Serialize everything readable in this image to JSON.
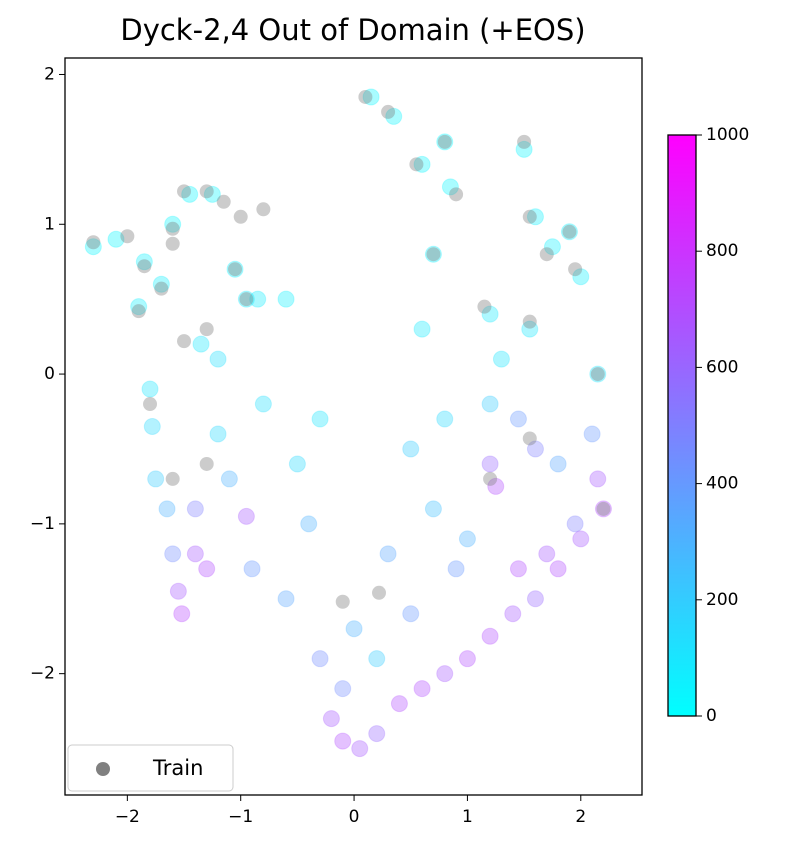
{
  "chart_data": {
    "type": "scatter",
    "title": "Dyck-2,4 Out of Domain (+EOS)",
    "xlim": [
      -2.55,
      2.54
    ],
    "ylim": [
      -2.81,
      2.11
    ],
    "xticks": [
      {
        "value": -2,
        "label": "−2"
      },
      {
        "value": -1,
        "label": "−1"
      },
      0,
      1,
      2
    ],
    "yticks": [
      {
        "value": -2,
        "label": "−2"
      },
      {
        "value": -1,
        "label": "−1"
      },
      0,
      1,
      2
    ],
    "colorbar": {
      "cmap": "cool",
      "clim": [
        0,
        1000
      ],
      "ticks": [
        0,
        200,
        400,
        600,
        800,
        1000
      ]
    },
    "legend": "lower left",
    "series": [
      {
        "x": [
          -2.3,
          -2.1,
          -1.85,
          -1.7,
          -1.9,
          -1.6,
          -1.45,
          -1.25,
          -0.95,
          -0.85,
          -1.05,
          -1.35,
          -1.2,
          0.15,
          0.35,
          0.6,
          0.85,
          0.8,
          0.7,
          1.5,
          1.6,
          1.75,
          1.9,
          2.0,
          1.2,
          1.3,
          1.55,
          2.15,
          -1.8,
          -1.78,
          -1.75,
          -1.65,
          -1.6,
          -1.55,
          -1.52,
          -1.4,
          -1.3,
          -1.2,
          -1.1,
          -0.95,
          -1.4,
          1.2,
          1.2,
          1.25,
          1.45,
          1.6,
          1.8,
          2.1,
          2.2,
          2.15,
          1.95,
          1.7,
          1.45,
          -0.9,
          -0.6,
          -0.3,
          -0.2,
          -0.1,
          0.05,
          0.2,
          0.4,
          0.6,
          0.8,
          1.0,
          1.2,
          1.4,
          1.6,
          1.8,
          2.0,
          0.0,
          0.2,
          -0.1,
          0.5,
          -0.5,
          -0.3,
          -0.8,
          0.5,
          0.7,
          0.3,
          -0.4,
          0.9,
          0.6,
          -0.6,
          0.8,
          1.0
        ],
        "y": [
          0.85,
          0.9,
          0.75,
          0.6,
          0.45,
          1.0,
          1.2,
          1.2,
          0.5,
          0.5,
          0.7,
          0.2,
          0.1,
          1.85,
          1.72,
          1.4,
          1.25,
          1.55,
          0.8,
          1.5,
          1.05,
          0.85,
          0.95,
          0.65,
          0.4,
          0.1,
          0.3,
          0.0,
          -0.1,
          -0.35,
          -0.7,
          -0.9,
          -1.2,
          -1.45,
          -1.6,
          -1.2,
          -1.3,
          -0.4,
          -0.7,
          -0.95,
          -0.9,
          -0.2,
          -0.6,
          -0.75,
          -0.3,
          -0.5,
          -0.6,
          -0.4,
          -0.9,
          -0.7,
          -1.0,
          -1.2,
          -1.3,
          -1.3,
          -1.5,
          -1.9,
          -2.3,
          -2.45,
          -2.5,
          -2.4,
          -2.2,
          -2.1,
          -2.0,
          -1.9,
          -1.75,
          -1.6,
          -1.5,
          -1.3,
          -1.1,
          -1.7,
          -1.9,
          -2.1,
          -1.6,
          -0.6,
          -0.3,
          -0.2,
          -0.5,
          -0.9,
          -1.2,
          -1.0,
          -1.3,
          0.3,
          0.5,
          -0.3,
          -1.1
        ],
        "c": [
          30,
          40,
          50,
          60,
          60,
          30,
          30,
          40,
          80,
          70,
          60,
          90,
          120,
          30,
          40,
          40,
          30,
          30,
          60,
          40,
          50,
          50,
          60,
          60,
          80,
          100,
          90,
          100,
          100,
          150,
          200,
          300,
          450,
          650,
          720,
          650,
          700,
          150,
          300,
          650,
          500,
          200,
          600,
          700,
          400,
          500,
          350,
          400,
          700,
          650,
          500,
          650,
          700,
          400,
          350,
          450,
          650,
          700,
          650,
          600,
          700,
          700,
          650,
          700,
          700,
          650,
          600,
          700,
          650,
          300,
          200,
          450,
          400,
          150,
          100,
          120,
          200,
          250,
          350,
          300,
          400,
          80,
          60,
          150,
          300
        ]
      },
      {
        "name": "Train",
        "color": "#808080",
        "x": [
          -2.3,
          -2.0,
          -1.85,
          -1.9,
          -1.7,
          -1.6,
          -1.5,
          -1.3,
          -1.15,
          -1.0,
          -1.6,
          -1.5,
          -1.3,
          -1.05,
          -0.95,
          -0.8,
          -1.8,
          -1.6,
          -1.3,
          0.1,
          0.3,
          0.55,
          0.8,
          0.9,
          0.7,
          1.5,
          1.55,
          1.7,
          1.9,
          1.95,
          1.15,
          1.55,
          2.15,
          1.55,
          -0.1,
          0.22,
          1.2,
          2.2
        ],
        "y": [
          0.88,
          0.92,
          0.72,
          0.42,
          0.57,
          0.97,
          1.22,
          1.22,
          1.15,
          1.05,
          0.87,
          0.22,
          0.3,
          0.7,
          0.5,
          1.1,
          -0.2,
          -0.7,
          -0.6,
          1.85,
          1.75,
          1.4,
          1.55,
          1.2,
          0.8,
          1.55,
          1.05,
          0.8,
          0.95,
          0.7,
          0.45,
          0.35,
          0.0,
          -0.43,
          -1.52,
          -1.46,
          -0.7,
          -0.9
        ]
      }
    ]
  }
}
